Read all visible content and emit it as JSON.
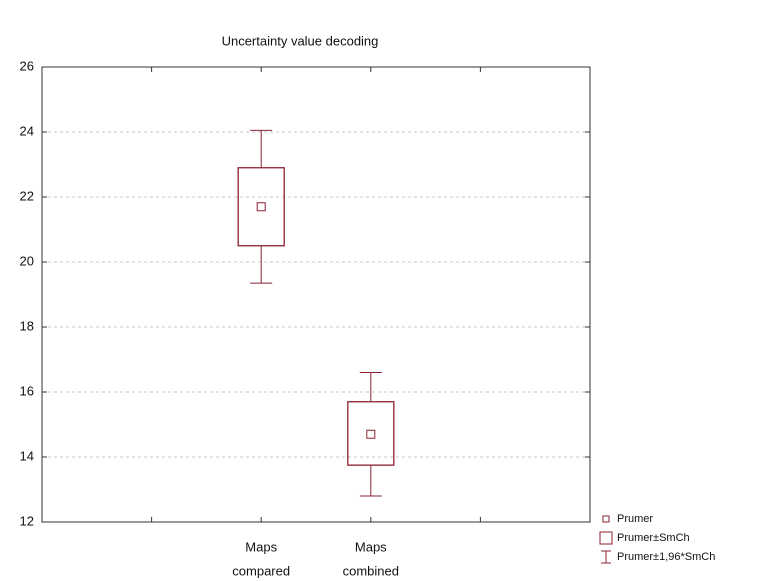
{
  "chart_data": {
    "type": "box",
    "title": "Uncertainty value decoding",
    "categories": [
      [
        "Maps",
        "compared"
      ],
      [
        "Maps",
        "combined"
      ]
    ],
    "mean": [
      21.7,
      14.7
    ],
    "box_low": [
      20.5,
      13.75
    ],
    "box_high": [
      22.9,
      15.7
    ],
    "whisker_low": [
      19.35,
      12.8
    ],
    "whisker_high": [
      24.05,
      16.6
    ],
    "legend": [
      "Prumer",
      "Prumer±SmCh",
      "Prumer±1,96*SmCh"
    ],
    "color": "#8b2232",
    "ylim": [
      12,
      26
    ],
    "yticks": [
      12,
      14,
      16,
      18,
      20,
      22,
      24,
      26
    ],
    "grid": true
  }
}
